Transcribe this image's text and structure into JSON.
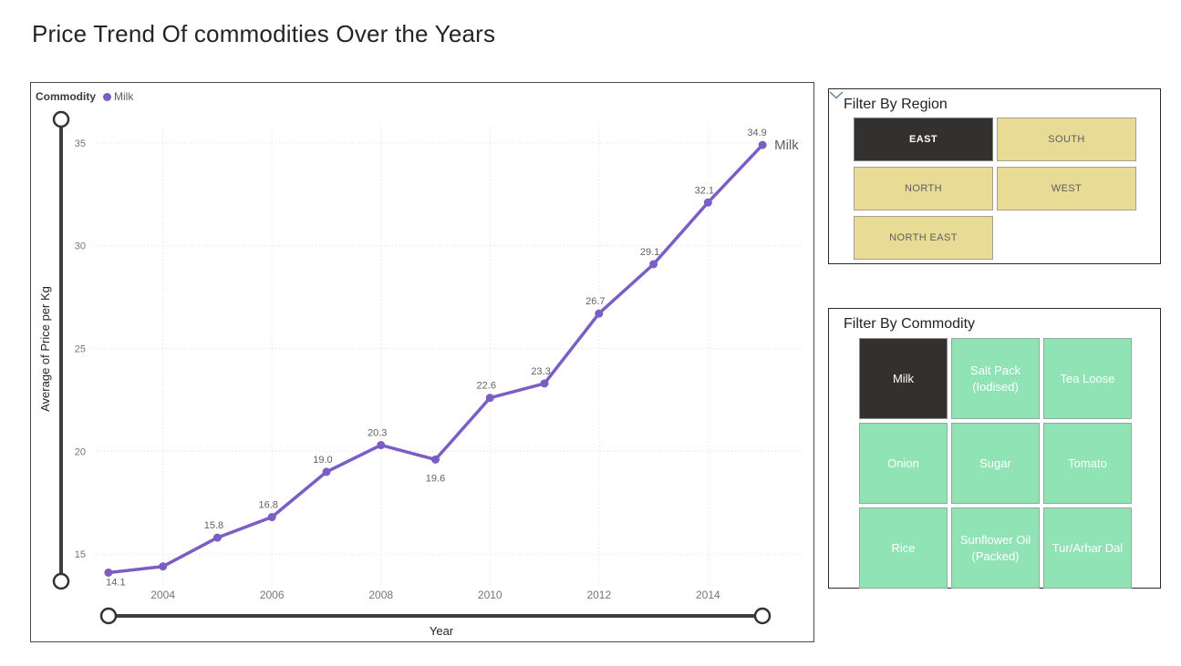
{
  "page": {
    "title": "Price Trend Of commodities Over the Years"
  },
  "chart_data": {
    "type": "line",
    "title": "",
    "xlabel": "Year",
    "ylabel": "Average of Price per Kg",
    "legend": {
      "title": "Commodity",
      "position": "top-left",
      "entries": [
        {
          "label": "Milk",
          "color": "#7B5DC6"
        }
      ]
    },
    "x": [
      2003,
      2004,
      2005,
      2006,
      2007,
      2008,
      2009,
      2010,
      2011,
      2012,
      2013,
      2014,
      2015
    ],
    "series": [
      {
        "name": "Milk",
        "color": "#7B5DC6",
        "values": [
          14.1,
          14.4,
          15.8,
          16.8,
          19.0,
          20.3,
          19.6,
          22.6,
          23.3,
          26.7,
          29.1,
          32.1,
          34.9
        ],
        "data_labels": [
          "14.1",
          null,
          "15.8",
          "16.8",
          "19.0",
          "20.3",
          "19.6",
          "22.6",
          "23.3",
          "26.7",
          "29.1",
          "32.1",
          "34.9"
        ],
        "end_label": "Milk"
      }
    ],
    "label_positions": [
      "below",
      null,
      "above",
      "above",
      "above",
      "above",
      "below",
      "above",
      "above",
      "above",
      "above",
      "above",
      "above"
    ],
    "x_ticks": [
      2004,
      2006,
      2008,
      2010,
      2012,
      2014
    ],
    "y_ticks": [
      15,
      20,
      25,
      30,
      35
    ],
    "xlim": [
      2002.5,
      2015.5
    ],
    "ylim": [
      13.5,
      36.5
    ],
    "grid": "dotted",
    "sliders": {
      "vertical": true,
      "horizontal": true
    }
  },
  "region_filter": {
    "title": "Filter By Region",
    "collapse_icon": "chevron-down",
    "options": [
      {
        "label": "EAST",
        "selected": true
      },
      {
        "label": "SOUTH",
        "selected": false
      },
      {
        "label": "NORTH",
        "selected": false
      },
      {
        "label": "WEST",
        "selected": false
      },
      {
        "label": "NORTH EAST",
        "selected": false
      }
    ]
  },
  "commodity_filter": {
    "title": "Filter By Commodity",
    "options": [
      {
        "label": "Milk",
        "selected": true
      },
      {
        "label": "Salt Pack (Iodised)",
        "selected": false
      },
      {
        "label": "Tea Loose",
        "selected": false
      },
      {
        "label": "Onion",
        "selected": false
      },
      {
        "label": "Sugar",
        "selected": false
      },
      {
        "label": "Tomato",
        "selected": false
      },
      {
        "label": "Rice",
        "selected": false
      },
      {
        "label": "Sunflower Oil (Packed)",
        "selected": false
      },
      {
        "label": "Tur/Arhar Dal",
        "selected": false
      }
    ]
  },
  "colors": {
    "line": "#7B5DC6",
    "selected_tile": "#323130",
    "region_tile": "#E8DB96",
    "commodity_tile": "#8FE3B5",
    "slider": "#3F3F3F",
    "grid": "#DCDCDC",
    "data_label": "#636363",
    "tick_label": "#757575",
    "chevron": "#5A7E9E"
  }
}
